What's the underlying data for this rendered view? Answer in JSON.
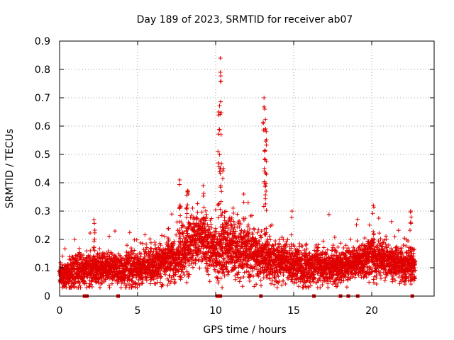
{
  "chart_data": {
    "type": "scatter",
    "title": "Day 189 of 2023, SRMTID for receiver ab07",
    "xlabel": "GPS time / hours",
    "ylabel": "SRMTID / TECUs",
    "xlim": [
      0,
      24
    ],
    "ylim": [
      0,
      0.9
    ],
    "xticks": [
      0,
      5,
      10,
      15,
      20
    ],
    "xtick_labels": [
      "0",
      "5",
      "10",
      "15",
      "20"
    ],
    "yticks": [
      0,
      0.1,
      0.2,
      0.3,
      0.4,
      0.5,
      0.6,
      0.7,
      0.8,
      0.9
    ],
    "ytick_labels": [
      "0",
      "0.1",
      "0.2",
      "0.3",
      "0.4",
      "0.5",
      "0.6",
      "0.7",
      "0.8",
      "0.9"
    ],
    "grid": true,
    "marker": "plus",
    "color": "#e00000",
    "series": [
      {
        "name": "SRMTID ab07",
        "profile_hours": [
          0,
          0.5,
          1.0,
          1.5,
          2.0,
          2.5,
          3.0,
          3.5,
          4.0,
          4.5,
          5.0,
          5.5,
          6.0,
          6.5,
          7.0,
          7.5,
          8.0,
          8.5,
          9.0,
          9.5,
          10.0,
          10.5,
          11.0,
          11.5,
          12.0,
          12.5,
          13.0,
          13.5,
          14.0,
          14.5,
          15.0,
          15.5,
          16.0,
          16.5,
          17.0,
          17.5,
          18.0,
          18.5,
          19.0,
          19.5,
          20.0,
          20.5,
          21.0,
          21.5,
          22.0,
          22.5,
          22.8
        ],
        "typical_values": [
          0.08,
          0.07,
          0.09,
          0.09,
          0.1,
          0.1,
          0.1,
          0.1,
          0.09,
          0.1,
          0.1,
          0.11,
          0.11,
          0.12,
          0.13,
          0.14,
          0.16,
          0.19,
          0.2,
          0.18,
          0.15,
          0.17,
          0.18,
          0.17,
          0.16,
          0.15,
          0.15,
          0.13,
          0.12,
          0.12,
          0.11,
          0.1,
          0.1,
          0.11,
          0.1,
          0.1,
          0.1,
          0.11,
          0.12,
          0.13,
          0.14,
          0.13,
          0.12,
          0.12,
          0.11,
          0.11,
          0.1
        ],
        "scatter_spread": [
          0.02,
          0.025,
          0.03,
          0.03,
          0.03,
          0.03,
          0.025,
          0.025,
          0.03,
          0.03,
          0.03,
          0.03,
          0.03,
          0.035,
          0.04,
          0.045,
          0.05,
          0.05,
          0.05,
          0.05,
          0.05,
          0.055,
          0.05,
          0.05,
          0.05,
          0.045,
          0.045,
          0.04,
          0.035,
          0.035,
          0.03,
          0.03,
          0.03,
          0.03,
          0.03,
          0.03,
          0.03,
          0.03,
          0.03,
          0.035,
          0.035,
          0.03,
          0.03,
          0.03,
          0.03,
          0.03,
          0.03
        ],
        "peaks": [
          {
            "x": 2.2,
            "y": 0.27
          },
          {
            "x": 7.7,
            "y": 0.41
          },
          {
            "x": 8.2,
            "y": 0.37
          },
          {
            "x": 9.2,
            "y": 0.39
          },
          {
            "x": 10.2,
            "y": 0.65
          },
          {
            "x": 10.3,
            "y": 0.84
          },
          {
            "x": 10.3,
            "y": 0.79
          },
          {
            "x": 10.35,
            "y": 0.57
          },
          {
            "x": 10.5,
            "y": 0.45
          },
          {
            "x": 11.8,
            "y": 0.36
          },
          {
            "x": 13.1,
            "y": 0.7
          },
          {
            "x": 13.15,
            "y": 0.66
          },
          {
            "x": 13.2,
            "y": 0.59
          },
          {
            "x": 13.25,
            "y": 0.43
          },
          {
            "x": 14.9,
            "y": 0.3
          },
          {
            "x": 20.1,
            "y": 0.32
          },
          {
            "x": 22.5,
            "y": 0.3
          }
        ],
        "flag_hours": [
          1.6,
          1.75,
          3.75,
          10.1,
          10.3,
          12.9,
          16.3,
          18.0,
          18.5,
          19.1,
          22.6
        ]
      }
    ]
  }
}
